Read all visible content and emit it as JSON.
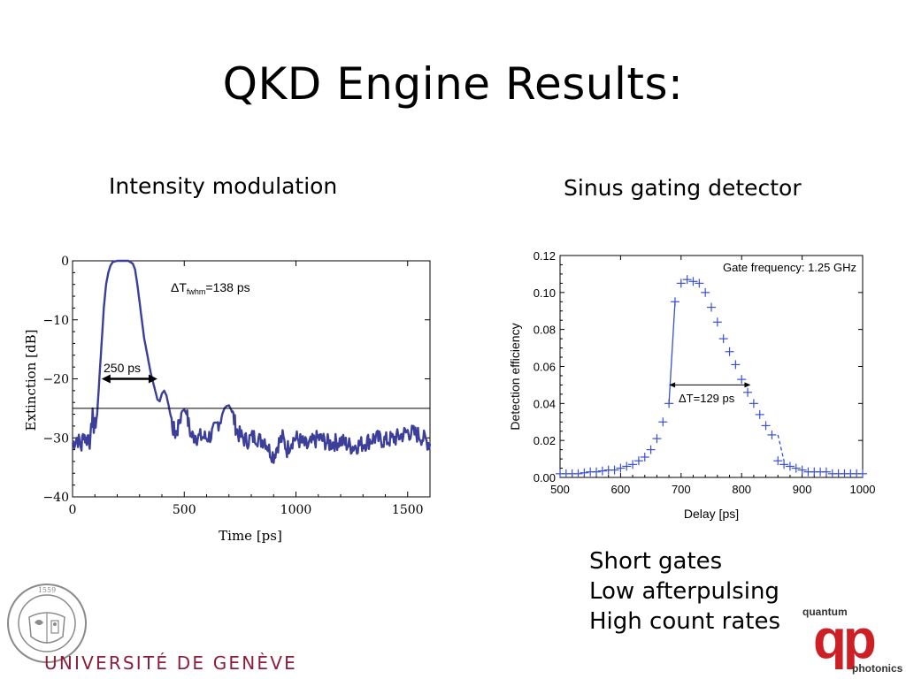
{
  "slide": {
    "title": "QKD Engine Results:",
    "left_subtitle": "Intensity modulation",
    "right_subtitle": "Sinus gating detector",
    "bullets": [
      "Short gates",
      "Low afterpulsing",
      "High count rates"
    ]
  },
  "logos": {
    "university": "UNIVERSITÉ DE GENÈVE",
    "seal_text": "SCHOLA GENEVENSIS 1559",
    "qp_top": "quantum",
    "qp_letters": "qp",
    "qp_bottom": "photonics",
    "university_color": "#8c1d3b",
    "qp_color": "#cc1f26"
  },
  "chart_data": [
    {
      "type": "line",
      "xlabel": "Time [ps]",
      "ylabel": "Extinction [dB]",
      "xlim": [
        0,
        1600
      ],
      "ylim": [
        -40,
        0
      ],
      "xticks": [
        0,
        500,
        1000,
        1500
      ],
      "yticks": [
        0,
        -10,
        -20,
        -30,
        -40
      ],
      "ytick_labels": [
        "0",
        "−10",
        "−20",
        "−30",
        "−40"
      ],
      "line_color": "#3b3f9a",
      "series": [
        {
          "x": [
            0,
            20,
            40,
            50,
            60,
            70,
            80,
            90,
            95,
            100,
            110,
            120,
            130,
            140,
            150,
            160,
            170,
            180,
            200,
            220,
            250,
            270,
            280,
            290,
            300,
            310,
            320,
            330,
            340,
            350,
            360,
            370,
            380,
            390,
            400,
            410,
            420,
            430,
            440,
            450,
            460,
            470,
            480,
            490,
            500,
            510,
            520,
            530,
            540,
            550,
            560,
            580,
            600,
            620,
            640,
            650,
            660,
            670,
            680,
            690,
            700,
            710,
            720,
            730,
            740,
            760,
            780,
            800,
            820,
            840,
            860,
            880,
            900,
            920,
            940,
            960,
            980,
            1000,
            1050,
            1100,
            1150,
            1200,
            1250,
            1300,
            1350,
            1400,
            1450,
            1500,
            1550,
            1600
          ],
          "y": [
            -31,
            -30,
            -31.5,
            -29,
            -30.5,
            -29.5,
            -31,
            -25,
            -29,
            -28,
            -26,
            -20,
            -14,
            -8,
            -4,
            -2,
            -0.8,
            -0.2,
            0,
            0,
            0,
            -0.5,
            -1.5,
            -4,
            -7,
            -10,
            -13,
            -15,
            -17,
            -19,
            -20.5,
            -22,
            -23.5,
            -23.8,
            -22.5,
            -22,
            -22.8,
            -24.5,
            -26.5,
            -28.5,
            -29.2,
            -28.5,
            -26.5,
            -25.5,
            -25.2,
            -26,
            -27.8,
            -29.5,
            -29.8,
            -29.5,
            -30,
            -29.8,
            -30,
            -29.5,
            -28.5,
            -27.5,
            -27,
            -26,
            -25,
            -24.6,
            -24.5,
            -25.2,
            -26.5,
            -28,
            -29.2,
            -30,
            -30.5,
            -30,
            -29.7,
            -30.5,
            -30.2,
            -32,
            -33,
            -31,
            -30,
            -32,
            -30.5,
            -30,
            -31.5,
            -30,
            -31,
            -30.5,
            -31.5,
            -31,
            -30,
            -30.5,
            -30,
            -29,
            -29.5,
            -31
          ]
        }
      ],
      "reference_line_y": -25,
      "annotations": [
        {
          "label_main": "ΔT",
          "label_sub": "fwhm",
          "label_rest": "=138 ps"
        },
        {
          "label": "250 ps",
          "x_from": 130,
          "x_to": 380,
          "y": -20
        }
      ]
    },
    {
      "type": "scatter",
      "xlabel": "Delay [ps]",
      "ylabel": "Detection efficiency",
      "xlim": [
        500,
        1000
      ],
      "ylim": [
        0,
        0.12
      ],
      "xticks": [
        500,
        600,
        700,
        800,
        900,
        1000
      ],
      "yticks": [
        0.0,
        0.02,
        0.04,
        0.06,
        0.08,
        0.1,
        0.12
      ],
      "ytick_labels": [
        "0.00",
        "0.02",
        "0.04",
        "0.06",
        "0.08",
        "0.10",
        "0.12"
      ],
      "marker_color": "#3a4fd6",
      "series": [
        {
          "name": "data",
          "x": [
            500,
            510,
            520,
            530,
            540,
            550,
            560,
            570,
            580,
            590,
            600,
            610,
            620,
            630,
            640,
            650,
            660,
            670,
            680,
            690,
            700,
            710,
            720,
            730,
            740,
            750,
            760,
            770,
            780,
            790,
            800,
            810,
            820,
            830,
            840,
            850,
            860,
            870,
            880,
            890,
            900,
            910,
            920,
            930,
            940,
            950,
            960,
            970,
            980,
            990,
            1000
          ],
          "y": [
            0.002,
            0.002,
            0.002,
            0.002,
            0.0025,
            0.003,
            0.003,
            0.0035,
            0.004,
            0.004,
            0.005,
            0.006,
            0.007,
            0.009,
            0.011,
            0.015,
            0.021,
            0.03,
            0.04,
            0.095,
            0.105,
            0.107,
            0.106,
            0.105,
            0.1,
            0.092,
            0.084,
            0.075,
            0.068,
            0.061,
            0.053,
            0.046,
            0.04,
            0.034,
            0.028,
            0.023,
            0.009,
            0.007,
            0.006,
            0.005,
            0.004,
            0.003,
            0.003,
            0.003,
            0.003,
            0.002,
            0.002,
            0.002,
            0.002,
            0.002,
            0.002
          ]
        }
      ],
      "annotations": [
        {
          "label": "Gate frequency: 1.25 GHz"
        },
        {
          "label": "ΔT=129 ps",
          "x_from": 680,
          "x_to": 815,
          "y": 0.05
        }
      ]
    }
  ]
}
